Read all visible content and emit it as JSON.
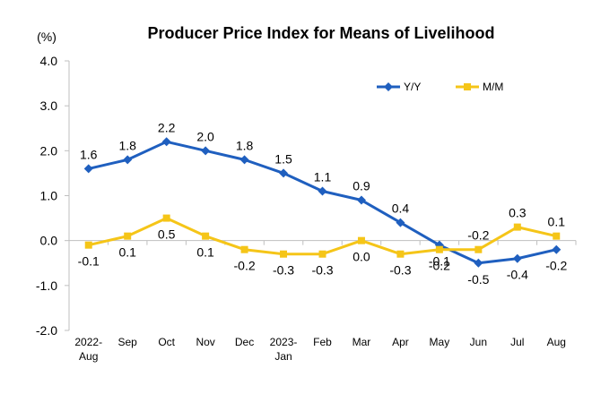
{
  "chart_data": {
    "type": "line",
    "title": "Producer Price Index for Means of Livelihood",
    "unit_label": "(%)",
    "categories": [
      [
        "2022-",
        "Aug"
      ],
      [
        "Sep"
      ],
      [
        "Oct"
      ],
      [
        "Nov"
      ],
      [
        "Dec"
      ],
      [
        "2023-",
        "Jan"
      ],
      [
        "Feb"
      ],
      [
        "Mar"
      ],
      [
        "Apr"
      ],
      [
        "May"
      ],
      [
        "Jun"
      ],
      [
        "Jul"
      ],
      [
        "Aug"
      ]
    ],
    "series": [
      {
        "name": "Y/Y",
        "color": "#1f5fbf",
        "marker": "diamond",
        "values": [
          1.6,
          1.8,
          2.2,
          2.0,
          1.8,
          1.5,
          1.1,
          0.9,
          0.4,
          -0.1,
          -0.5,
          -0.4,
          -0.2
        ],
        "labels": [
          "1.6",
          "1.8",
          "2.2",
          "2.0",
          "1.8",
          "1.5",
          "1.1",
          "0.9",
          "0.4",
          "-0.1",
          "-0.5",
          "-0.4",
          "-0.2"
        ]
      },
      {
        "name": "M/M",
        "color": "#f5c518",
        "marker": "square",
        "values": [
          -0.1,
          0.1,
          0.5,
          0.1,
          -0.2,
          -0.3,
          -0.3,
          0.0,
          -0.3,
          -0.2,
          -0.2,
          0.3,
          0.1
        ],
        "labels": [
          "-0.1",
          "0.1",
          "0.5",
          "0.1",
          "-0.2",
          "-0.3",
          "-0.3",
          "0.0",
          "-0.3",
          "-0.2",
          "-0.2",
          "0.3",
          "0.1"
        ]
      }
    ],
    "ylim": [
      -2.0,
      4.0
    ],
    "yticks": [
      "4.0",
      "3.0",
      "2.0",
      "1.0",
      "0.0",
      "-1.0",
      "-2.0"
    ],
    "ytick_values": [
      4,
      3,
      2,
      1,
      0,
      -1,
      -2
    ],
    "grid": false,
    "legend_position": "top-right"
  }
}
